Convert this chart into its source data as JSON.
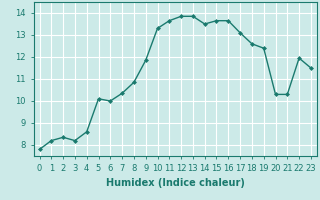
{
  "x": [
    0,
    1,
    2,
    3,
    4,
    5,
    6,
    7,
    8,
    9,
    10,
    11,
    12,
    13,
    14,
    15,
    16,
    17,
    18,
    19,
    20,
    21,
    22,
    23
  ],
  "y": [
    7.8,
    8.2,
    8.35,
    8.2,
    8.6,
    10.1,
    10.0,
    10.35,
    10.85,
    11.85,
    13.3,
    13.65,
    13.85,
    13.85,
    13.5,
    13.65,
    13.65,
    13.1,
    12.6,
    12.4,
    10.3,
    10.3,
    11.95,
    11.5
  ],
  "line_color": "#1a7a6e",
  "marker": "D",
  "marker_size": 2.0,
  "bg_color": "#cceae8",
  "grid_color": "#ffffff",
  "xlabel": "Humidex (Indice chaleur)",
  "xlim": [
    -0.5,
    23.5
  ],
  "ylim": [
    7.5,
    14.5
  ],
  "yticks": [
    8,
    9,
    10,
    11,
    12,
    13,
    14
  ],
  "xticks": [
    0,
    1,
    2,
    3,
    4,
    5,
    6,
    7,
    8,
    9,
    10,
    11,
    12,
    13,
    14,
    15,
    16,
    17,
    18,
    19,
    20,
    21,
    22,
    23
  ],
  "tick_label_fontsize": 6.0,
  "xlabel_fontsize": 7.0,
  "line_width": 1.0
}
